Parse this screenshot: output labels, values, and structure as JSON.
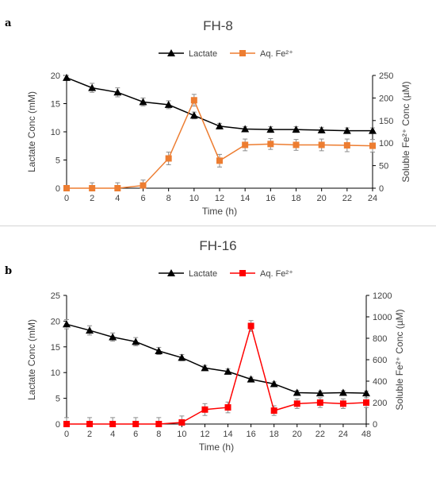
{
  "chart_data": [
    {
      "type": "line",
      "panel_label": "a",
      "title": "FH-8",
      "xlabel": "Time (h)",
      "ylabel": "Lactate Conc (mM)",
      "y2label": "Soluble Fe²⁺ Conc (µM)",
      "categories": [
        "0",
        "2",
        "4",
        "6",
        "8",
        "10",
        "12",
        "14",
        "16",
        "18",
        "20",
        "22",
        "24"
      ],
      "ylim": [
        0,
        20
      ],
      "yticks": [
        0,
        5,
        10,
        15,
        20
      ],
      "y2lim": [
        0,
        250
      ],
      "y2ticks": [
        0,
        50,
        100,
        150,
        200,
        250
      ],
      "grid": false,
      "legend_position": "top-center",
      "series": [
        {
          "name": "Lactate",
          "axis": "left",
          "color": "#000000",
          "marker": "triangle",
          "values": [
            19.6,
            17.8,
            17.0,
            15.3,
            14.8,
            12.9,
            11.0,
            10.5,
            10.4,
            10.4,
            10.3,
            10.2,
            10.2
          ],
          "errors": [
            0.4,
            0.8,
            0.8,
            0.7,
            0.7,
            0.6,
            0.5,
            0.4,
            0.5,
            0.5,
            0.5,
            0.5,
            0.5
          ]
        },
        {
          "name": "Aq. Fe²⁺",
          "axis": "right",
          "color": "#ed7d31",
          "marker": "square",
          "values": [
            0,
            0,
            0,
            6,
            66,
            195,
            61,
            96,
            98,
            96,
            96,
            95,
            94
          ],
          "errors": [
            0,
            12,
            12,
            12,
            14,
            13,
            14,
            13,
            12,
            12,
            13,
            14,
            14
          ]
        }
      ]
    },
    {
      "type": "line",
      "panel_label": "b",
      "title": "FH-16",
      "xlabel": "Time (h)",
      "ylabel": "Lactate Conc (mM)",
      "y2label": "Soluble Fe²⁺ Conc (µM)",
      "categories": [
        "0",
        "2",
        "4",
        "6",
        "8",
        "10",
        "12",
        "14",
        "16",
        "18",
        "20",
        "22",
        "24",
        "48"
      ],
      "ylim": [
        0,
        25
      ],
      "yticks": [
        0,
        5,
        10,
        15,
        20,
        25
      ],
      "y2lim": [
        0,
        1200
      ],
      "y2ticks": [
        0,
        200,
        400,
        600,
        800,
        1000,
        1200
      ],
      "grid": false,
      "legend_position": "top-center",
      "series": [
        {
          "name": "Lactate",
          "axis": "left",
          "color": "#000000",
          "marker": "triangle",
          "values": [
            19.4,
            18.2,
            16.9,
            16.0,
            14.2,
            12.9,
            10.9,
            10.2,
            8.7,
            7.8,
            6.1,
            6.0,
            6.1,
            6.0
          ],
          "errors": [
            0.9,
            0.9,
            0.8,
            0.8,
            0.7,
            0.6,
            0.5,
            0.5,
            0.4,
            0.4,
            0.4,
            0.4,
            0.4,
            0.4
          ],
          "labels": []
        },
        {
          "name": "Aq. Fe²⁺",
          "axis": "right",
          "color": "#ff0000",
          "marker": "square",
          "values": [
            0,
            0,
            0,
            0,
            0,
            15,
            135,
            155,
            915,
            125,
            190,
            200,
            190,
            200
          ],
          "errors": [
            60,
            60,
            60,
            60,
            60,
            60,
            55,
            50,
            50,
            45,
            45,
            45,
            45,
            45
          ]
        }
      ]
    }
  ]
}
